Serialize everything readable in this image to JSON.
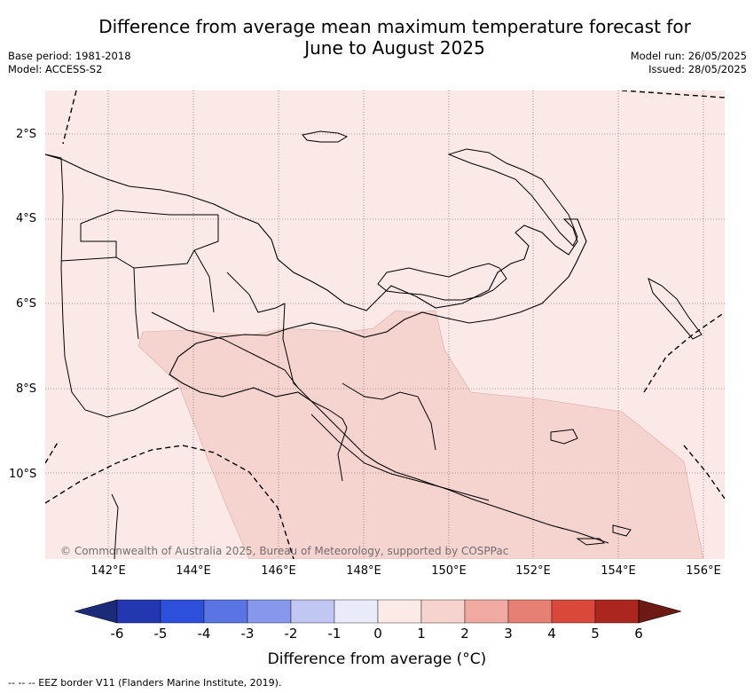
{
  "title": {
    "line1": "Difference from average mean maximum temperature forecast for",
    "line2": "June to August 2025"
  },
  "meta_left": {
    "base_period": "Base period: 1981-2018",
    "model": "Model: ACCESS-S2"
  },
  "meta_right": {
    "model_run": "Model run: 26/05/2025",
    "issued": "Issued: 28/05/2025"
  },
  "map": {
    "lat_labels": [
      "2°S",
      "4°S",
      "6°S",
      "8°S",
      "10°S"
    ],
    "lon_labels": [
      "142°E",
      "144°E",
      "146°E",
      "148°E",
      "150°E",
      "152°E",
      "154°E",
      "156°E"
    ],
    "copyright": "© Commonwealth of Australia 2025, Bureau of Meteorology, supported by COSPPac",
    "colors": {
      "background_anomaly": "#fbe9e7",
      "warm_anomaly_region": "#f5d4d0",
      "gridline": "#555555",
      "coastline": "#000000"
    }
  },
  "colorbar": {
    "ticks": [
      "-6",
      "-5",
      "-4",
      "-3",
      "-2",
      "-1",
      "0",
      "1",
      "2",
      "3",
      "4",
      "5",
      "6"
    ],
    "colors": [
      "#1b2b7a",
      "#2337b0",
      "#2d4fdc",
      "#5a74e4",
      "#8797ec",
      "#c0c7f3",
      "#e9ebfa",
      "#fceae6",
      "#f6d3cd",
      "#f0aaa2",
      "#e67f74",
      "#da483c",
      "#ac2620",
      "#6e1a14"
    ],
    "title": "Difference from average (°C)"
  },
  "footer": "-- -- -- EEZ border V11 (Flanders Marine Institute, 2019)."
}
